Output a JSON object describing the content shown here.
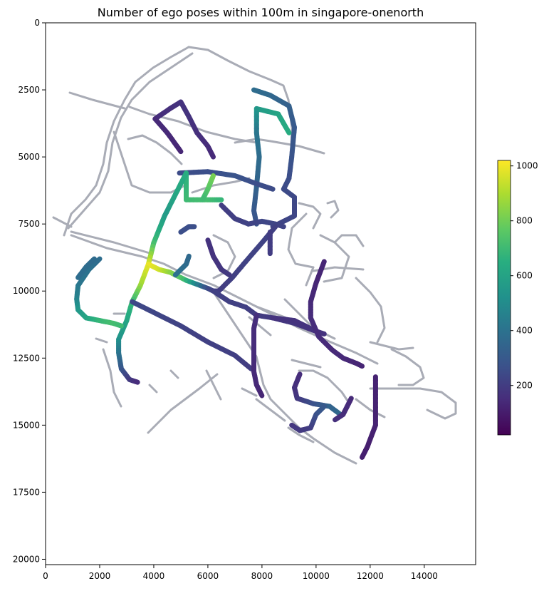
{
  "chart_data": {
    "type": "scatter",
    "title": "Number of ego poses within 100m in singapore-onenorth",
    "xlabel": "",
    "ylabel": "",
    "xlim": [
      0,
      15900
    ],
    "ylim": [
      20200,
      0
    ],
    "x_ticks": [
      0,
      2000,
      4000,
      6000,
      8000,
      10000,
      12000,
      14000
    ],
    "x_tick_labels": [
      "0",
      "2000",
      "4000",
      "6000",
      "8000",
      "10000",
      "12000",
      "14000"
    ],
    "y_ticks": [
      0,
      2500,
      5000,
      7500,
      10000,
      12500,
      15000,
      17500,
      20000
    ],
    "y_tick_labels": [
      "0",
      "2500",
      "5000",
      "7500",
      "10000",
      "12500",
      "15000",
      "17500",
      "20000"
    ],
    "grid": false,
    "colormap": "viridis",
    "colorbar": {
      "min": 20,
      "max": 1020,
      "ticks": [
        200,
        400,
        600,
        800,
        1000
      ],
      "tick_labels": [
        "200",
        "400",
        "600",
        "800",
        "1000"
      ]
    },
    "road_color": "#a9acb6",
    "trajectories": [
      {
        "points": [
          [
            4050,
            3580
          ],
          [
            4600,
            3200
          ],
          [
            5000,
            2950
          ],
          [
            5300,
            3500
          ],
          [
            5600,
            4100
          ],
          [
            6000,
            4600
          ],
          [
            6200,
            5000
          ]
        ],
        "values": [
          150,
          160,
          170,
          170,
          160,
          150,
          140
        ]
      },
      {
        "points": [
          [
            4050,
            3580
          ],
          [
            4500,
            4100
          ],
          [
            5000,
            4800
          ]
        ],
        "values": [
          140,
          140,
          130
        ]
      },
      {
        "points": [
          [
            7700,
            2500
          ],
          [
            8300,
            2700
          ],
          [
            9000,
            3100
          ],
          [
            9200,
            3900
          ],
          [
            9100,
            5000
          ],
          [
            9000,
            5800
          ],
          [
            8800,
            6200
          ]
        ],
        "values": [
          380,
          360,
          330,
          300,
          280,
          260,
          250
        ]
      },
      {
        "points": [
          [
            7800,
            3200
          ],
          [
            8600,
            3400
          ],
          [
            9000,
            4100
          ]
        ],
        "values": [
          560,
          600,
          640
        ]
      },
      {
        "points": [
          [
            7800,
            3200
          ],
          [
            7800,
            4100
          ],
          [
            7900,
            5000
          ],
          [
            7800,
            6100
          ],
          [
            7700,
            7000
          ],
          [
            7800,
            7500
          ]
        ],
        "values": [
          560,
          420,
          380,
          340,
          300,
          280
        ]
      },
      {
        "points": [
          [
            8800,
            6200
          ],
          [
            9200,
            6500
          ],
          [
            9200,
            7200
          ],
          [
            8800,
            7400
          ],
          [
            8400,
            7600
          ]
        ],
        "values": [
          250,
          240,
          230,
          230,
          220
        ]
      },
      {
        "points": [
          [
            4950,
            5600
          ],
          [
            6000,
            5550
          ],
          [
            7000,
            5700
          ],
          [
            7800,
            6000
          ],
          [
            8400,
            6200
          ]
        ],
        "values": [
          250,
          260,
          280,
          260,
          250
        ]
      },
      {
        "points": [
          [
            5200,
            5600
          ],
          [
            5200,
            6600
          ],
          [
            6000,
            6600
          ],
          [
            6500,
            6600
          ]
        ],
        "values": [
          650,
          700,
          720,
          680
        ]
      },
      {
        "points": [
          [
            6200,
            5700
          ],
          [
            6000,
            6200
          ],
          [
            5800,
            6600
          ]
        ],
        "values": [
          820,
          760,
          700
        ]
      },
      {
        "points": [
          [
            5200,
            5600
          ],
          [
            4800,
            6400
          ],
          [
            4400,
            7200
          ],
          [
            4000,
            8200
          ],
          [
            3800,
            9000
          ]
        ],
        "values": [
          650,
          620,
          560,
          700,
          960
        ]
      },
      {
        "points": [
          [
            6500,
            6800
          ],
          [
            7000,
            7300
          ],
          [
            7500,
            7500
          ],
          [
            8000,
            7400
          ],
          [
            8500,
            7500
          ],
          [
            8800,
            7600
          ]
        ],
        "values": [
          200,
          210,
          220,
          230,
          230,
          220
        ]
      },
      {
        "points": [
          [
            8500,
            7600
          ],
          [
            8000,
            8200
          ],
          [
            7400,
            8900
          ],
          [
            6900,
            9500
          ],
          [
            6400,
            10000
          ],
          [
            6200,
            10000
          ]
        ],
        "values": [
          210,
          220,
          220,
          210,
          200,
          200
        ]
      },
      {
        "points": [
          [
            8300,
            7800
          ],
          [
            8300,
            8600
          ]
        ],
        "values": [
          200,
          200
        ]
      },
      {
        "points": [
          [
            3800,
            9000
          ],
          [
            4200,
            9200
          ],
          [
            4600,
            9300
          ],
          [
            5200,
            9600
          ],
          [
            6000,
            9900
          ],
          [
            6200,
            10000
          ]
        ],
        "values": [
          1000,
          960,
          860,
          700,
          260,
          220
        ]
      },
      {
        "points": [
          [
            4800,
            9400
          ],
          [
            5200,
            9000
          ],
          [
            5300,
            8700
          ]
        ],
        "values": [
          400,
          380,
          360
        ]
      },
      {
        "points": [
          [
            5000,
            7800
          ],
          [
            5300,
            7600
          ],
          [
            5500,
            7600
          ]
        ],
        "values": [
          260,
          260,
          260
        ]
      },
      {
        "points": [
          [
            6000,
            8100
          ],
          [
            6200,
            8700
          ],
          [
            6500,
            9200
          ],
          [
            6800,
            9400
          ]
        ],
        "values": [
          170,
          170,
          180,
          190
        ]
      },
      {
        "points": [
          [
            3800,
            9000
          ],
          [
            3500,
            9800
          ],
          [
            3200,
            10400
          ],
          [
            3000,
            11100
          ],
          [
            2700,
            11800
          ],
          [
            2700,
            12300
          ],
          [
            2800,
            12900
          ],
          [
            3100,
            13300
          ],
          [
            3400,
            13400
          ]
        ],
        "values": [
          1000,
          880,
          700,
          620,
          540,
          420,
          300,
          200,
          150
        ]
      },
      {
        "points": [
          [
            3200,
            10400
          ],
          [
            4000,
            10800
          ],
          [
            5000,
            11300
          ],
          [
            6000,
            11900
          ],
          [
            7000,
            12400
          ],
          [
            7600,
            12900
          ]
        ],
        "values": [
          240,
          230,
          220,
          210,
          210,
          200
        ]
      },
      {
        "points": [
          [
            6200,
            10000
          ],
          [
            6800,
            10400
          ],
          [
            7400,
            10600
          ],
          [
            7800,
            10900
          ],
          [
            8400,
            11000
          ],
          [
            9200,
            11200
          ],
          [
            10000,
            11500
          ],
          [
            10300,
            11600
          ]
        ],
        "values": [
          210,
          210,
          210,
          200,
          190,
          180,
          170,
          170
        ]
      },
      {
        "points": [
          [
            7800,
            10900
          ],
          [
            7700,
            11400
          ],
          [
            7700,
            12200
          ],
          [
            7700,
            13000
          ],
          [
            7800,
            13500
          ],
          [
            8000,
            13900
          ]
        ],
        "values": [
          160,
          150,
          150,
          140,
          140,
          130
        ]
      },
      {
        "points": [
          [
            8400,
            11000
          ],
          [
            9200,
            11100
          ],
          [
            9600,
            11300
          ],
          [
            10000,
            11500
          ]
        ],
        "values": [
          170,
          170,
          170,
          170
        ]
      },
      {
        "points": [
          [
            1200,
            9800
          ],
          [
            1600,
            9200
          ],
          [
            2000,
            8800
          ]
        ],
        "values": [
          420,
          400,
          380
        ]
      },
      {
        "points": [
          [
            1200,
            9800
          ],
          [
            1150,
            10300
          ],
          [
            1200,
            10700
          ],
          [
            1500,
            11000
          ],
          [
            2000,
            11100
          ],
          [
            2500,
            11200
          ],
          [
            2800,
            11300
          ]
        ],
        "values": [
          420,
          460,
          540,
          600,
          680,
          720,
          700
        ]
      },
      {
        "points": [
          [
            1200,
            9500
          ],
          [
            1500,
            9100
          ],
          [
            1800,
            8800
          ]
        ],
        "values": [
          380,
          380,
          370
        ]
      },
      {
        "points": [
          [
            10300,
            8900
          ],
          [
            10000,
            9700
          ],
          [
            9800,
            10400
          ],
          [
            9800,
            11000
          ],
          [
            10100,
            11700
          ],
          [
            10600,
            12200
          ],
          [
            11000,
            12500
          ],
          [
            11500,
            12700
          ],
          [
            11700,
            12800
          ]
        ],
        "values": [
          130,
          130,
          140,
          150,
          150,
          140,
          140,
          130,
          130
        ]
      },
      {
        "points": [
          [
            12200,
            13200
          ],
          [
            12200,
            14000
          ],
          [
            12200,
            15000
          ],
          [
            11900,
            15800
          ],
          [
            11700,
            16200
          ]
        ],
        "values": [
          120,
          120,
          120,
          110,
          110
        ]
      },
      {
        "points": [
          [
            9400,
            13100
          ],
          [
            9200,
            13600
          ],
          [
            9300,
            14000
          ],
          [
            9900,
            14200
          ],
          [
            10500,
            14300
          ],
          [
            10900,
            14600
          ]
        ],
        "values": [
          150,
          160,
          180,
          260,
          340,
          360
        ]
      },
      {
        "points": [
          [
            9100,
            15000
          ],
          [
            9400,
            15200
          ],
          [
            9800,
            15100
          ],
          [
            10000,
            14600
          ],
          [
            10300,
            14300
          ]
        ],
        "values": [
          180,
          190,
          200,
          260,
          300
        ]
      },
      {
        "points": [
          [
            11300,
            14000
          ],
          [
            11000,
            14600
          ],
          [
            10700,
            14800
          ]
        ],
        "values": [
          140,
          150,
          160
        ]
      }
    ]
  }
}
